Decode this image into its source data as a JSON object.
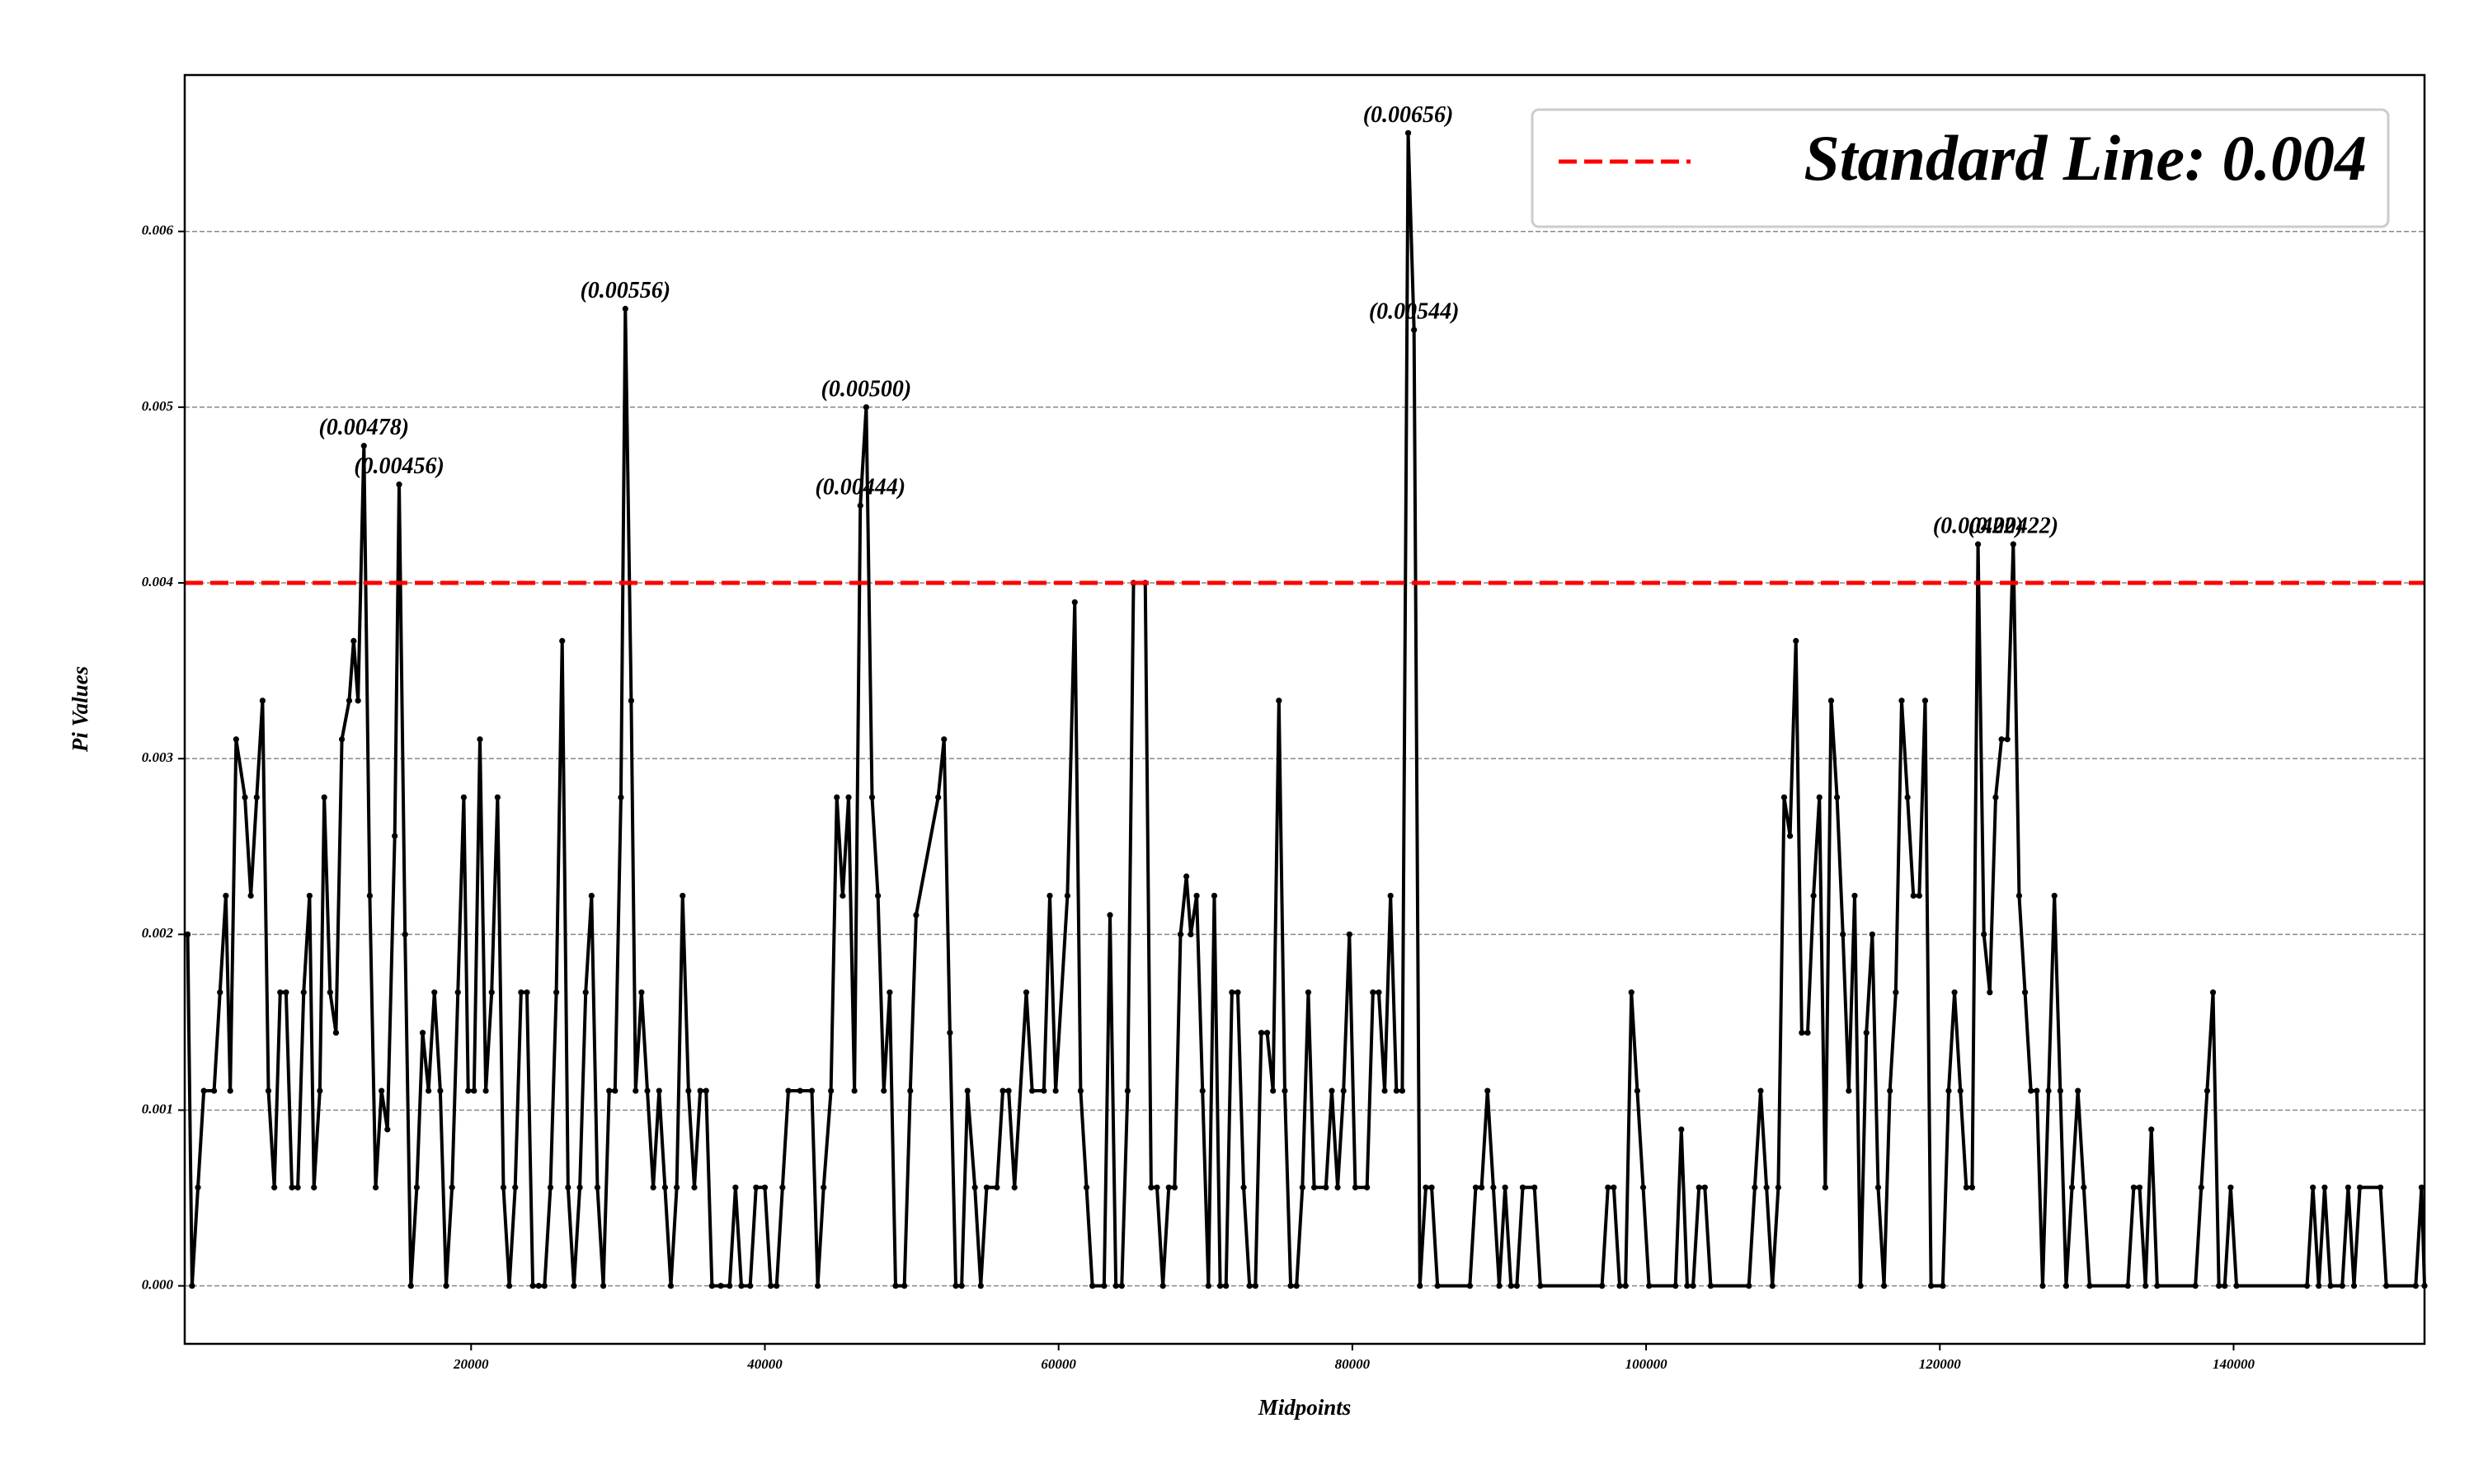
{
  "chart_data": {
    "type": "line",
    "xlabel": "Midpoints",
    "ylabel": "Pi Values",
    "color": "#000000",
    "xlim": [
      500,
      153000
    ],
    "ylim": [
      -0.00033,
      0.00689
    ],
    "xticks": [
      20000,
      40000,
      60000,
      80000,
      100000,
      120000,
      140000
    ],
    "yticks": [
      {
        "value": 0,
        "label": "0.000"
      },
      {
        "value": 0.001,
        "label": "0.001"
      },
      {
        "value": 0.002,
        "label": "0.002"
      },
      {
        "value": 0.003,
        "label": "0.003"
      },
      {
        "value": 0.004,
        "label": "0.004"
      },
      {
        "value": 0.005,
        "label": "0.005"
      },
      {
        "value": 0.006,
        "label": "0.006"
      }
    ],
    "grid": true,
    "legend_position": "upper right",
    "hline": {
      "value": 0.004,
      "color": "#ff0000",
      "label": "Standard Line: 0.004"
    },
    "x": [
      700,
      1000,
      1400,
      1800,
      2500,
      2900,
      3300,
      3600,
      4000,
      4600,
      5000,
      5400,
      5800,
      6200,
      6600,
      7000,
      7400,
      7800,
      8200,
      8600,
      9000,
      9300,
      9700,
      10000,
      10400,
      10800,
      11200,
      11700,
      12000,
      12300,
      12700,
      13100,
      13500,
      13900,
      14300,
      14800,
      15100,
      15500,
      15900,
      16300,
      16700,
      17100,
      17500,
      17900,
      18300,
      18700,
      19100,
      19500,
      19800,
      20200,
      20600,
      21000,
      21400,
      21800,
      22200,
      22600,
      23000,
      23400,
      23800,
      24200,
      24600,
      25000,
      25400,
      25800,
      26200,
      26600,
      27000,
      27400,
      27800,
      28200,
      28600,
      29000,
      29400,
      29800,
      30200,
      30500,
      30900,
      31200,
      31600,
      32000,
      32400,
      32800,
      33200,
      33600,
      34000,
      34400,
      34800,
      35200,
      35600,
      36000,
      36400,
      37000,
      37600,
      38000,
      38400,
      39000,
      39400,
      40000,
      40400,
      40800,
      41200,
      41600,
      42400,
      43200,
      43600,
      44000,
      44500,
      44900,
      45300,
      45700,
      46100,
      46500,
      46900,
      47300,
      47700,
      48100,
      48500,
      48900,
      49500,
      49900,
      50300,
      51800,
      52200,
      52600,
      53000,
      53400,
      53800,
      54300,
      54700,
      55100,
      55800,
      56200,
      56600,
      57000,
      57800,
      58200,
      59000,
      59400,
      59800,
      60600,
      61100,
      61500,
      61900,
      62300,
      63100,
      63500,
      63900,
      64300,
      64700,
      65100,
      65900,
      66300,
      66700,
      67100,
      67500,
      67900,
      68300,
      68700,
      69000,
      69400,
      69800,
      70200,
      70600,
      71000,
      71400,
      71800,
      72200,
      72600,
      73000,
      73400,
      73800,
      74200,
      74600,
      75000,
      75400,
      75800,
      76200,
      76600,
      77000,
      77400,
      78200,
      78600,
      79000,
      79400,
      79800,
      80200,
      81000,
      81400,
      81800,
      82200,
      82600,
      83000,
      83400,
      83800,
      84200,
      84600,
      85000,
      85400,
      85800,
      88000,
      88400,
      88800,
      89200,
      89600,
      90000,
      90400,
      90800,
      91200,
      91600,
      92400,
      92800,
      97000,
      97400,
      97800,
      98200,
      98600,
      99000,
      99400,
      99800,
      100200,
      102000,
      102400,
      102800,
      103200,
      103600,
      104000,
      104400,
      107000,
      107400,
      107800,
      108200,
      108600,
      109000,
      109400,
      109800,
      110200,
      110600,
      111000,
      111400,
      111800,
      112200,
      112600,
      113000,
      113400,
      113800,
      114200,
      114600,
      115000,
      115400,
      115800,
      116200,
      116600,
      117000,
      117400,
      117800,
      118200,
      118600,
      119000,
      119400,
      120200,
      120600,
      121000,
      121400,
      121800,
      122200,
      122600,
      123000,
      123400,
      123800,
      124200,
      124600,
      125000,
      125400,
      125800,
      126200,
      126600,
      127000,
      127400,
      127800,
      128200,
      128600,
      129000,
      129400,
      129800,
      130200,
      132800,
      133200,
      133600,
      134000,
      134400,
      134800,
      137400,
      137800,
      138200,
      138600,
      139000,
      139400,
      139800,
      140200,
      145000,
      145400,
      145800,
      146200,
      146600,
      147400,
      147800,
      148200,
      148600,
      150000,
      150400,
      152400,
      152800,
      153000
    ],
    "values": [
      0.002,
      0,
      0.00056,
      0.00111,
      0.00111,
      0.00167,
      0.00222,
      0.00111,
      0.00311,
      0.00278,
      0.00222,
      0.00278,
      0.00333,
      0.00111,
      0.00056,
      0.00167,
      0.00167,
      0.00056,
      0.00056,
      0.00167,
      0.00222,
      0.00056,
      0.00111,
      0.00278,
      0.00167,
      0.00144,
      0.00311,
      0.00333,
      0.00367,
      0.00333,
      0.00478,
      0.00222,
      0.00056,
      0.00111,
      0.00089,
      0.00256,
      0.00456,
      0.002,
      0,
      0.00056,
      0.00144,
      0.00111,
      0.00167,
      0.00111,
      0,
      0.00056,
      0.00167,
      0.00278,
      0.00111,
      0.00111,
      0.00311,
      0.00111,
      0.00167,
      0.00278,
      0.00056,
      0,
      0.00056,
      0.00167,
      0.00167,
      0,
      0,
      0,
      0.00056,
      0.00167,
      0.00367,
      0.00056,
      0,
      0.00056,
      0.00167,
      0.00222,
      0.00056,
      0,
      0.00111,
      0.00111,
      0.00278,
      0.00556,
      0.00333,
      0.00111,
      0.00167,
      0.00111,
      0.00056,
      0.00111,
      0.00056,
      0,
      0.00056,
      0.00222,
      0.00111,
      0.00056,
      0.00111,
      0.00111,
      0,
      0,
      0,
      0.00056,
      0,
      0,
      0.00056,
      0.00056,
      0,
      0,
      0.00056,
      0.00111,
      0.00111,
      0.00111,
      0,
      0.00056,
      0.00111,
      0.00278,
      0.00222,
      0.00278,
      0.00111,
      0.00444,
      0.005,
      0.00278,
      0.00222,
      0.00111,
      0.00167,
      0,
      0,
      0.00111,
      0.00211,
      0.00278,
      0.00311,
      0.00144,
      0,
      0,
      0.00111,
      0.00056,
      0,
      0.00056,
      0.00056,
      0.00111,
      0.00111,
      0.00056,
      0.00167,
      0.00111,
      0.00111,
      0.00222,
      0.00111,
      0.00222,
      0.00389,
      0.00111,
      0.00056,
      0,
      0,
      0.00211,
      0,
      0,
      0.00111,
      0.004,
      0.004,
      0.00056,
      0.00056,
      0,
      0.00056,
      0.00056,
      0.002,
      0.00233,
      0.002,
      0.00222,
      0.00111,
      0,
      0.00222,
      0,
      0,
      0.00167,
      0.00167,
      0.00056,
      0,
      0,
      0.00144,
      0.00144,
      0.00111,
      0.00333,
      0.00111,
      0,
      0,
      0.00056,
      0.00167,
      0.00056,
      0.00056,
      0.00111,
      0.00056,
      0.00111,
      0.002,
      0.00056,
      0.00056,
      0.00167,
      0.00167,
      0.00111,
      0.00222,
      0.00111,
      0.00111,
      0.00656,
      0.00544,
      0,
      0.00056,
      0.00056,
      0,
      0,
      0.00056,
      0.00056,
      0.00111,
      0.00056,
      0,
      0.00056,
      0,
      0,
      0.00056,
      0.00056,
      0,
      0,
      0.00056,
      0.00056,
      0,
      0,
      0.00167,
      0.00111,
      0.00056,
      0,
      0,
      0.00089,
      0,
      0,
      0.00056,
      0.00056,
      0,
      0,
      0.00056,
      0.00111,
      0.00056,
      0,
      0.00056,
      0.00278,
      0.00256,
      0.00367,
      0.00144,
      0.00144,
      0.00222,
      0.00278,
      0.00056,
      0.00333,
      0.00278,
      0.002,
      0.00111,
      0.00222,
      0,
      0.00144,
      0.002,
      0.00056,
      0,
      0.00111,
      0.00167,
      0.00333,
      0.00278,
      0.00222,
      0.00222,
      0.00333,
      0,
      0,
      0.00111,
      0.00167,
      0.00111,
      0.00056,
      0.00056,
      0.00422,
      0.002,
      0.00167,
      0.00278,
      0.00311,
      0.00311,
      0.00422,
      0.00222,
      0.00167,
      0.00111,
      0.00111,
      0,
      0.00111,
      0.00222,
      0.00111,
      0,
      0.00056,
      0.00111,
      0.00056,
      0,
      0,
      0.00056,
      0.00056,
      0,
      0.00089,
      0,
      0,
      0.00056,
      0.00111,
      0.00167,
      0,
      0,
      0.00056,
      0,
      0,
      0.00056,
      0,
      0.00056,
      0,
      0,
      0.00056,
      0,
      0.00056,
      0.00056,
      0,
      0,
      0.00056,
      0
    ],
    "annotations": [
      {
        "x": 12700,
        "y": 0.00478,
        "label": "(0.00478)"
      },
      {
        "x": 15100,
        "y": 0.00456,
        "label": "(0.00456)"
      },
      {
        "x": 30500,
        "y": 0.00556,
        "label": "(0.00556)"
      },
      {
        "x": 46500,
        "y": 0.00444,
        "label": "(0.00444)"
      },
      {
        "x": 46900,
        "y": 0.005,
        "label": "(0.00500)"
      },
      {
        "x": 83800,
        "y": 0.00656,
        "label": "(0.00656)"
      },
      {
        "x": 84200,
        "y": 0.00544,
        "label": "(0.00544)"
      },
      {
        "x": 122600,
        "y": 0.00422,
        "label": "(0.00422)"
      },
      {
        "x": 125000,
        "y": 0.00422,
        "label": "(0.00422)"
      }
    ]
  }
}
